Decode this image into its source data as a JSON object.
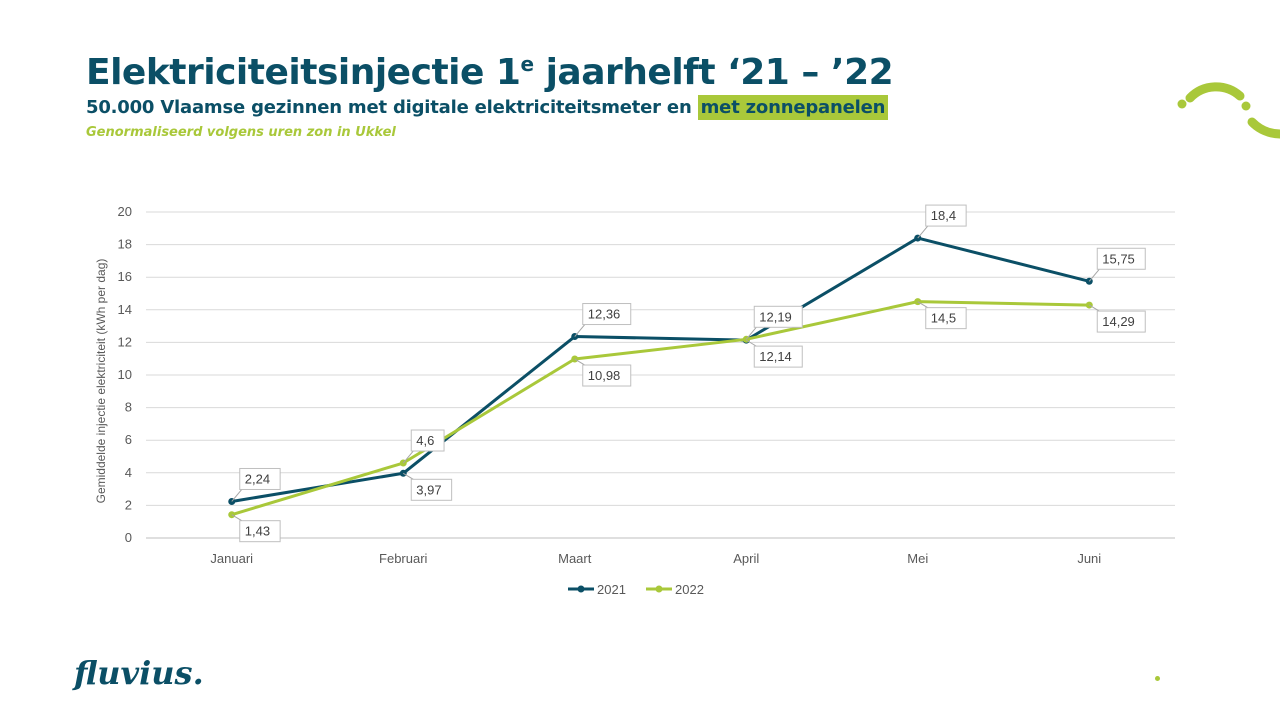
{
  "slide": {
    "title_main": "Elektriciteitsinjectie 1",
    "title_sup": "e",
    "title_rest": " jaarhelft ‘21 – ’22",
    "subtitle_main": "50.000 Vlaamse gezinnen met digitale elektriciteitsmeter en ",
    "subtitle_highlight": "met zonnepanelen",
    "note": "Genormaliseerd volgens uren zon in Ukkel",
    "brand": "fluvius."
  },
  "colors": {
    "series_2021": "#0b4f66",
    "series_2022": "#a9c83a",
    "title": "#0b4f66",
    "accent": "#a9c83a"
  },
  "icons": [
    "arc-decoration-icon",
    "fluvius-logo"
  ],
  "chart_data": {
    "type": "line",
    "categories": [
      "Januari",
      "Februari",
      "Maart",
      "April",
      "Mei",
      "Juni"
    ],
    "ylabel": "Gemiddelde injectie elektriciteit (kWh per dag)",
    "ylim": [
      0,
      20
    ],
    "yticks": [
      0,
      2,
      4,
      6,
      8,
      10,
      12,
      14,
      16,
      18,
      20
    ],
    "grid": true,
    "legend_position": "bottom-center",
    "series": [
      {
        "name": "2021",
        "values": [
          2.24,
          3.97,
          12.36,
          12.14,
          18.4,
          15.75
        ],
        "labels": [
          "2,24",
          "3,97",
          "12,36",
          "12,14",
          "18,4",
          "15,75"
        ]
      },
      {
        "name": "2022",
        "values": [
          1.43,
          4.6,
          10.98,
          12.19,
          14.5,
          14.29
        ],
        "labels": [
          "1,43",
          "4,6",
          "10,98",
          "12,19",
          "14,5",
          "14,29"
        ]
      }
    ]
  }
}
